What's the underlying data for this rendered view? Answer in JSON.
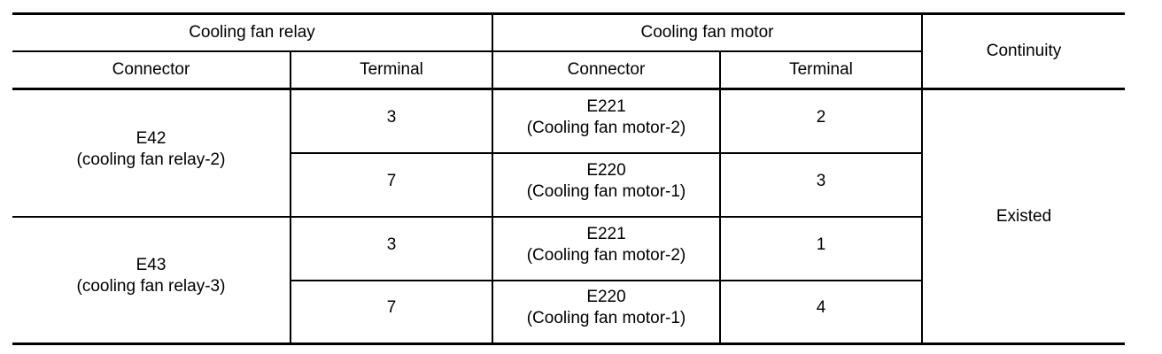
{
  "header": {
    "relay_group": "Cooling fan relay",
    "motor_group": "Cooling fan motor",
    "continuity": "Continuity",
    "relay_connector": "Connector",
    "relay_terminal": "Terminal",
    "motor_connector": "Connector",
    "motor_terminal": "Terminal"
  },
  "relays": [
    {
      "connector": "E42",
      "name": "(cooling fan relay-2)"
    },
    {
      "connector": "E43",
      "name": "(cooling fan relay-3)"
    }
  ],
  "rows": [
    {
      "relay_terminal": "3",
      "motor_connector": "E221",
      "motor_name": "(Cooling fan motor-2)",
      "motor_terminal": "2"
    },
    {
      "relay_terminal": "7",
      "motor_connector": "E220",
      "motor_name": "(Cooling fan motor-1)",
      "motor_terminal": "3"
    },
    {
      "relay_terminal": "3",
      "motor_connector": "E221",
      "motor_name": "(Cooling fan motor-2)",
      "motor_terminal": "1"
    },
    {
      "relay_terminal": "7",
      "motor_connector": "E220",
      "motor_name": "(Cooling fan motor-1)",
      "motor_terminal": "4"
    }
  ],
  "continuity_value": "Existed"
}
